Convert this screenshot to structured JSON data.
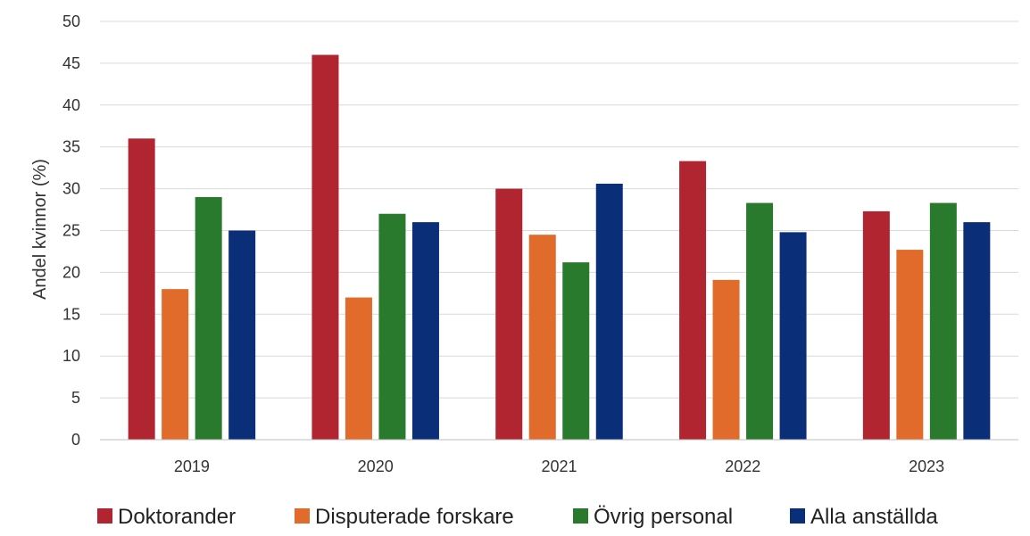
{
  "chart_data": {
    "type": "bar",
    "title": "",
    "xlabel": "",
    "ylabel": "Andel kvinnor (%)",
    "ylim": [
      0,
      50
    ],
    "yticks": [
      0,
      5,
      10,
      15,
      20,
      25,
      30,
      35,
      40,
      45,
      50
    ],
    "grid": true,
    "legend_position": "bottom",
    "categories": [
      "2019",
      "2020",
      "2021",
      "2022",
      "2023"
    ],
    "series": [
      {
        "name": "Doktorander",
        "color": "#b02530",
        "values": [
          36,
          46,
          30,
          33.3,
          27.3
        ]
      },
      {
        "name": "Disputerade forskare",
        "color": "#e06b2a",
        "values": [
          18,
          17,
          24.5,
          19.1,
          22.7
        ]
      },
      {
        "name": "Övrig personal",
        "color": "#2a7a2e",
        "values": [
          29,
          27,
          21.2,
          28.3,
          28.3
        ]
      },
      {
        "name": "Alla anställda",
        "color": "#0a2f78",
        "values": [
          25,
          26,
          30.6,
          24.8,
          26
        ]
      }
    ]
  }
}
